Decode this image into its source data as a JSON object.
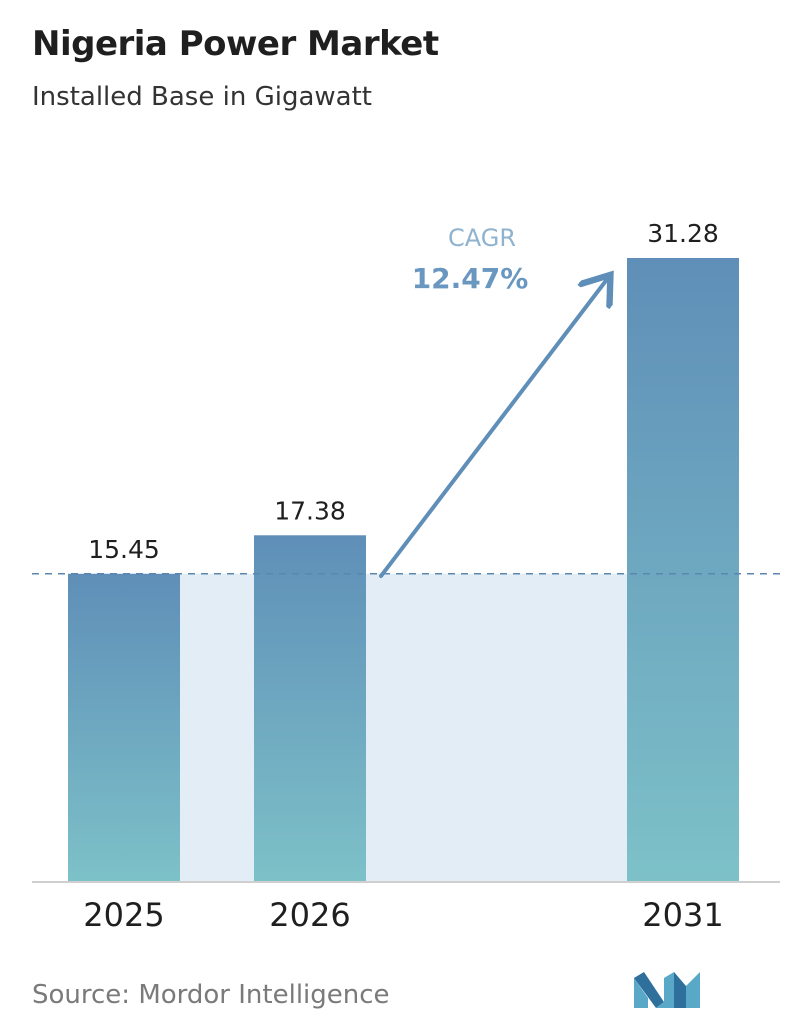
{
  "header": {
    "title": "Nigeria Power Market",
    "subtitle": "Installed Base in Gigawatt"
  },
  "chart_data": {
    "type": "bar",
    "categories": [
      "2025",
      "2026",
      "2031"
    ],
    "values": [
      15.45,
      17.38,
      31.28
    ],
    "value_labels": [
      "15.45",
      "17.38",
      "31.28"
    ],
    "title": "Nigeria Power Market",
    "subtitle": "Installed Base in Gigawatt",
    "xlabel": "",
    "ylabel": "",
    "ylim": [
      0,
      35
    ],
    "grid": false,
    "annotation": {
      "label": "CAGR",
      "value": "12.47%"
    },
    "colors": {
      "bar_top": "#5f8fb8",
      "bar_bottom": "#7dc1c8",
      "shade": "#e3edf5",
      "baseline": "#5b86ad",
      "arrow": "#5f8fb8"
    }
  },
  "footer": {
    "source": "Source:  Mordor Intelligence",
    "logo_icon": "mordor-intelligence-logo"
  }
}
